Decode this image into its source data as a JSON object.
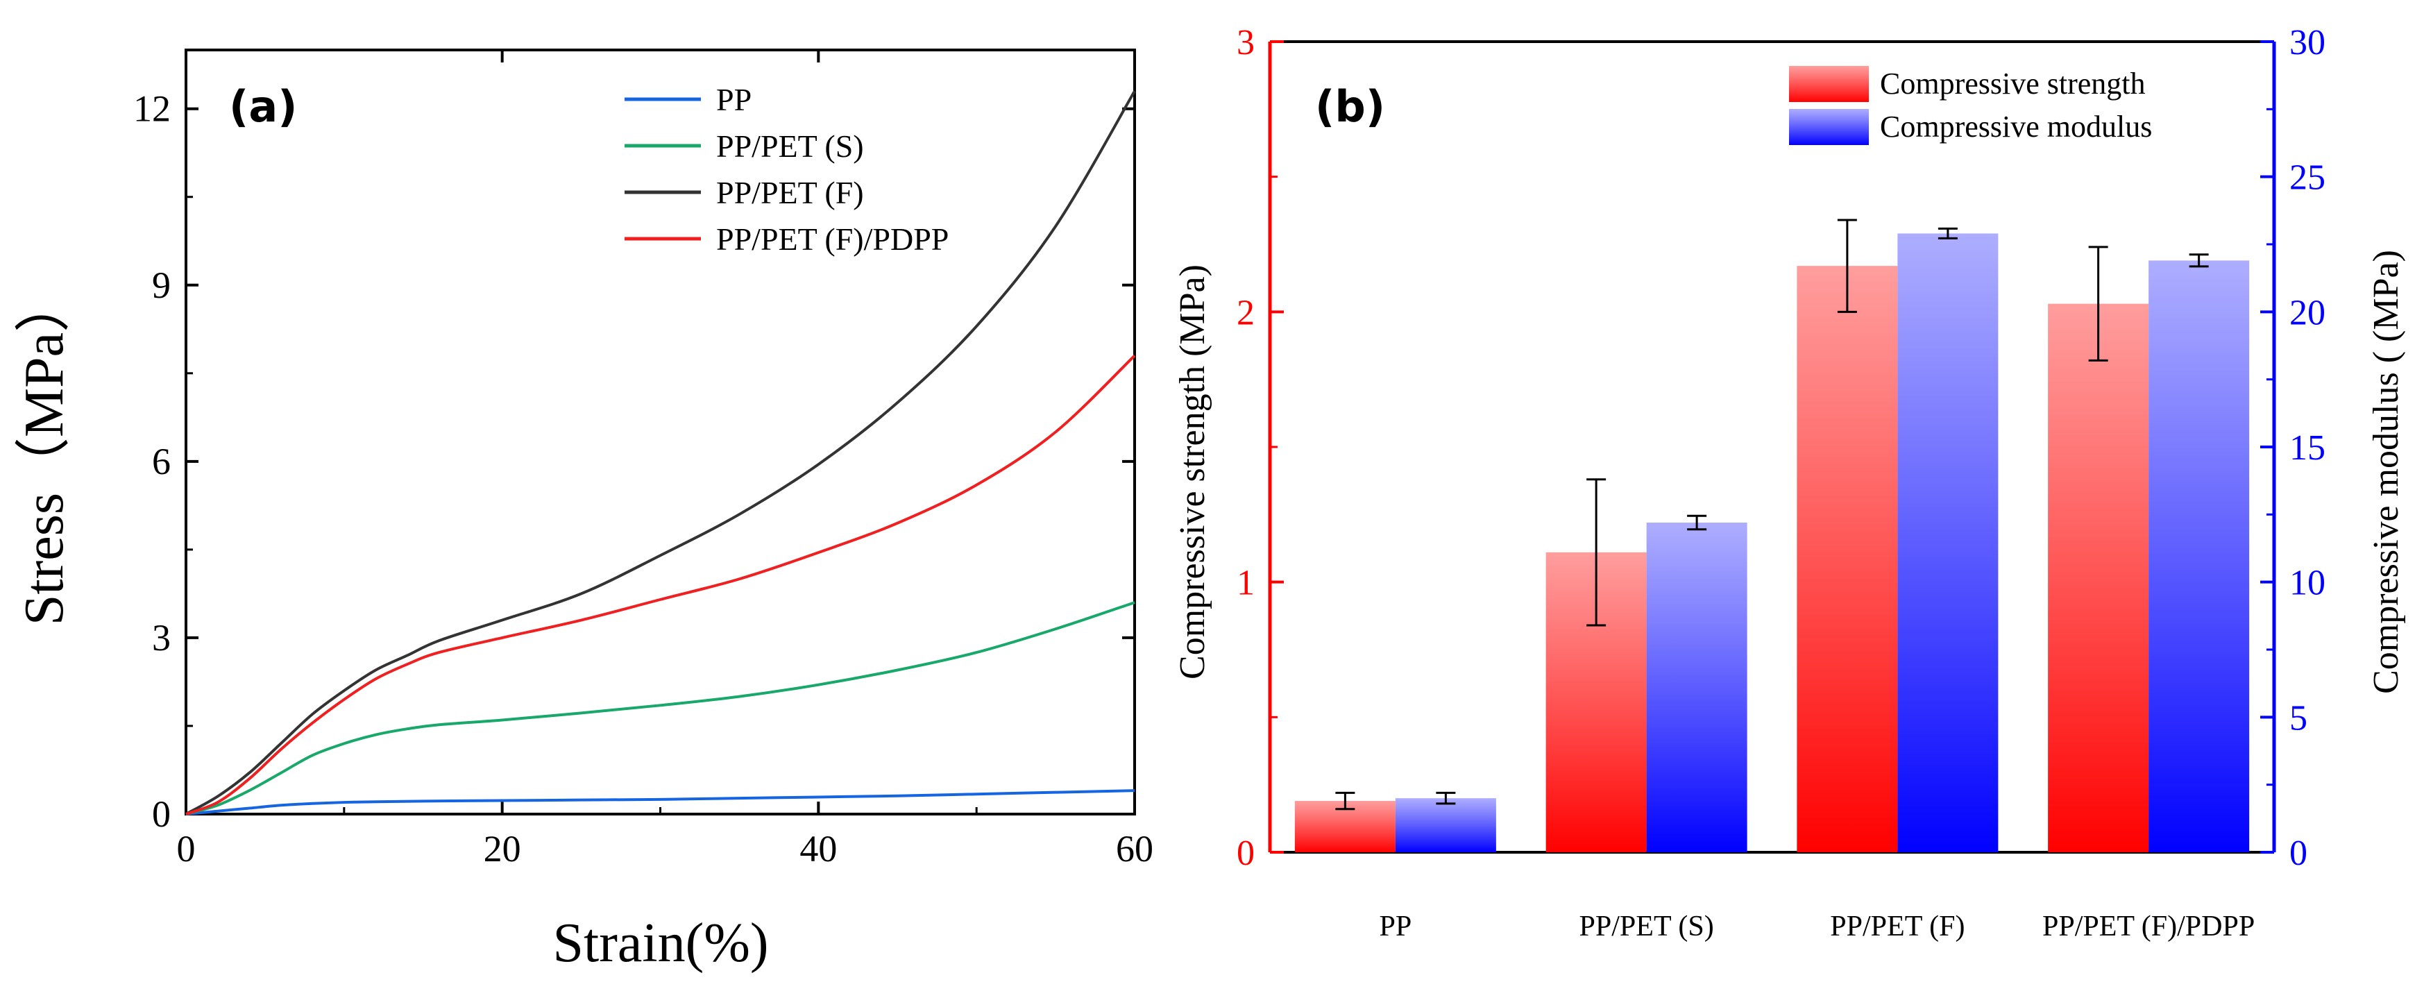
{
  "chart_data": [
    {
      "type": "line",
      "panel_label": "(a)",
      "xlabel": "Strain(%)",
      "ylabel": "Stress（MPa）",
      "xlim": [
        0,
        60
      ],
      "ylim": [
        0,
        13
      ],
      "xticks": [
        0,
        20,
        40,
        60
      ],
      "yticks": [
        0,
        3,
        6,
        9,
        12
      ],
      "legend_position": "top-right",
      "series": [
        {
          "name": "PP",
          "color": "#1565e0",
          "x": [
            0,
            2,
            4,
            6,
            8,
            10,
            12,
            15,
            20,
            25,
            30,
            35,
            40,
            45,
            50,
            55,
            60
          ],
          "y": [
            0,
            0.05,
            0.1,
            0.15,
            0.18,
            0.2,
            0.21,
            0.22,
            0.23,
            0.24,
            0.25,
            0.27,
            0.29,
            0.31,
            0.34,
            0.37,
            0.4
          ]
        },
        {
          "name": "PP/PET (S)",
          "color": "#17a86a",
          "x": [
            0,
            2,
            4,
            6,
            8,
            10,
            12,
            14,
            16,
            20,
            25,
            30,
            35,
            40,
            45,
            50,
            55,
            60
          ],
          "y": [
            0,
            0.15,
            0.4,
            0.7,
            1.0,
            1.2,
            1.35,
            1.45,
            1.52,
            1.6,
            1.72,
            1.85,
            2.0,
            2.2,
            2.45,
            2.75,
            3.15,
            3.6
          ]
        },
        {
          "name": "PP/PET (F)",
          "color": "#333333",
          "x": [
            0,
            2,
            4,
            6,
            8,
            10,
            12,
            14,
            16,
            20,
            25,
            30,
            35,
            40,
            45,
            50,
            55,
            60
          ],
          "y": [
            0,
            0.3,
            0.7,
            1.2,
            1.7,
            2.1,
            2.45,
            2.7,
            2.95,
            3.3,
            3.75,
            4.4,
            5.1,
            5.95,
            7.0,
            8.3,
            10.0,
            12.3
          ]
        },
        {
          "name": "PP/PET (F)/PDPP",
          "color": "#f02020",
          "x": [
            0,
            2,
            4,
            6,
            8,
            10,
            12,
            14,
            16,
            20,
            25,
            30,
            35,
            40,
            45,
            50,
            55,
            60
          ],
          "y": [
            0,
            0.2,
            0.6,
            1.1,
            1.55,
            1.95,
            2.3,
            2.55,
            2.75,
            3.0,
            3.3,
            3.65,
            4.0,
            4.45,
            4.95,
            5.6,
            6.5,
            7.8
          ]
        }
      ]
    },
    {
      "type": "bar",
      "panel_label": "(b)",
      "categories": [
        "PP",
        "PP/PET (S)",
        "PP/PET (F)",
        "PP/PET (F)/PDPP"
      ],
      "ylabel": "Compressive strength (MPa)",
      "y2label": "Compressive modulus ( (MPa)",
      "ylim": [
        0,
        3
      ],
      "y2lim": [
        0,
        30
      ],
      "yticks": [
        0,
        1,
        2,
        3
      ],
      "y2ticks": [
        0,
        5,
        10,
        15,
        20,
        25,
        30
      ],
      "left_axis_color": "#ff0000",
      "right_axis_color": "#0000ff",
      "legend_position": "top-right",
      "series": [
        {
          "name": "Compressive strength",
          "axis": "left",
          "color": "#ff0000",
          "values": [
            0.19,
            1.11,
            2.17,
            2.03
          ],
          "errors": [
            0.03,
            0.27,
            0.17,
            0.21
          ]
        },
        {
          "name": "Compressive modulus",
          "axis": "right",
          "color": "#0000ff",
          "values": [
            2.0,
            12.2,
            22.9,
            21.9
          ],
          "errors": [
            0.2,
            0.25,
            0.18,
            0.22
          ]
        }
      ]
    }
  ]
}
